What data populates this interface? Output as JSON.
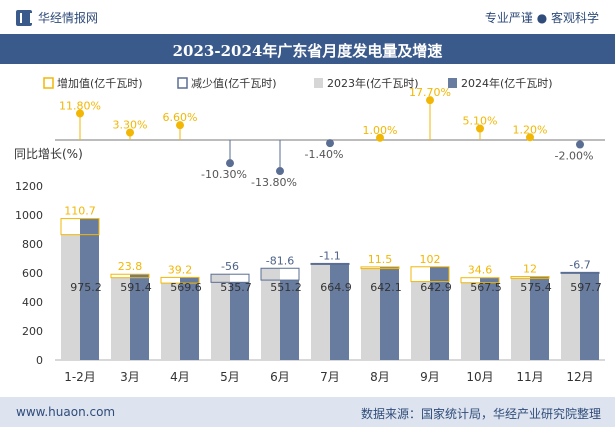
{
  "header": {
    "brand": "华经情报网",
    "tagline": "专业严谨 ● 客观科学"
  },
  "title": "2023-2024年广东省月度发电量及增速",
  "footer": {
    "website": "www.huaon.com",
    "source": "数据来源：国家统计局，华经产业研究院整理"
  },
  "colors": {
    "header_bg": "#3b5a8c",
    "bar_2023": "#d6d6d6",
    "bar_2024": "#687ca0",
    "increase": "#f2b705",
    "decrease": "#5a6e93",
    "footer_bg": "#dde3ef"
  },
  "chart_data": {
    "type": "bar",
    "categories": [
      "1-2月",
      "3月",
      "4月",
      "5月",
      "6月",
      "7月",
      "8月",
      "9月",
      "10月",
      "11月",
      "12月"
    ],
    "series": [
      {
        "name": "2023年(亿千瓦时)",
        "values": [
          864.5,
          567.6,
          530.4,
          591.7,
          632.7,
          666.0,
          630.6,
          540.9,
          532.9,
          563.4,
          604.4
        ]
      },
      {
        "name": "2024年(亿千瓦时)",
        "values": [
          975.2,
          591.4,
          569.6,
          535.7,
          551.2,
          664.9,
          642.1,
          642.9,
          567.5,
          575.4,
          597.7
        ]
      }
    ],
    "difference_labels": [
      "110.7",
      "23.8",
      "39.2",
      "-56",
      "-81.6",
      "-1.1",
      "11.5",
      "102",
      "34.6",
      "12",
      "-6.7"
    ],
    "difference_values": [
      110.7,
      23.8,
      39.2,
      -56,
      -81.6,
      -1.1,
      11.5,
      102,
      34.6,
      12,
      -6.7
    ],
    "bar_labels": [
      "975.2",
      "591.4",
      "569.6",
      "535.7",
      "551.2",
      "664.9",
      "642.1",
      "642.9",
      "567.5",
      "575.4",
      "597.7"
    ],
    "growth": {
      "values": [
        11.8,
        3.3,
        6.6,
        -10.3,
        -13.8,
        -1.4,
        1.0,
        17.7,
        5.1,
        1.2,
        -2.0
      ],
      "labels": [
        "11.80%",
        "3.30%",
        "6.60%",
        "-10.30%",
        "-13.80%",
        "-1.40%",
        "1.00%",
        "17.70%",
        "5.10%",
        "1.20%",
        "-2.00%"
      ]
    },
    "legend": [
      "增加值(亿千瓦时)",
      "减少值(亿千瓦时)",
      "2023年(亿千瓦时)",
      "2024年(亿千瓦时)"
    ],
    "growth_axis_label": "同比增长(%)",
    "ylim": [
      0,
      1200
    ],
    "yticks": [
      "0",
      "200",
      "400",
      "600",
      "800",
      "1000",
      "1200"
    ],
    "legend_position": "top"
  }
}
